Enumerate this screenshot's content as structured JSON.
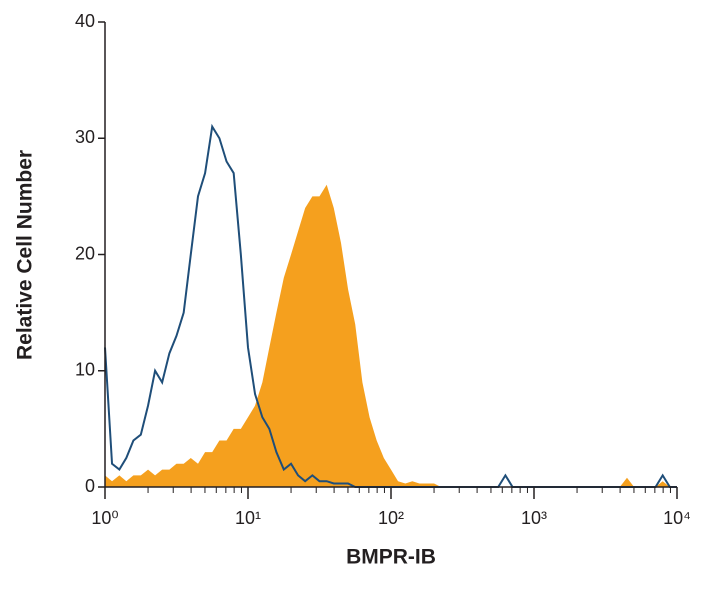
{
  "chart_data": {
    "type": "histogram",
    "xlabel": "BMPR-IB",
    "ylabel": "Relative Cell Number",
    "xscale": "log",
    "xlim": [
      1,
      10000
    ],
    "xticks": [
      {
        "value": 1,
        "label": "10⁰"
      },
      {
        "value": 10,
        "label": "10¹"
      },
      {
        "value": 100,
        "label": "10²"
      },
      {
        "value": 1000,
        "label": "10³"
      },
      {
        "value": 10000,
        "label": "10⁴"
      }
    ],
    "xminorticks": [
      2,
      3,
      4,
      5,
      6,
      7,
      8,
      9,
      20,
      30,
      40,
      50,
      60,
      70,
      80,
      90,
      200,
      300,
      400,
      500,
      600,
      700,
      800,
      900,
      2000,
      3000,
      4000,
      5000,
      6000,
      7000,
      8000,
      9000
    ],
    "ylim": [
      0,
      40
    ],
    "yticks": [
      0,
      10,
      20,
      30,
      40
    ],
    "x": [
      1,
      1.12,
      1.26,
      1.41,
      1.58,
      1.78,
      2,
      2.24,
      2.51,
      2.82,
      3.16,
      3.55,
      3.98,
      4.47,
      5.01,
      5.62,
      6.31,
      7.08,
      7.94,
      8.91,
      10,
      11.2,
      12.6,
      14.1,
      15.8,
      17.8,
      20,
      22.4,
      25.1,
      28.2,
      31.6,
      35.5,
      39.8,
      44.7,
      50.1,
      56.2,
      63.1,
      70.8,
      79.4,
      89.1,
      100,
      112,
      126,
      141,
      158,
      178,
      200,
      224,
      251,
      282,
      316,
      355,
      398,
      447,
      501,
      562,
      631,
      708,
      794,
      891,
      1000,
      1120,
      1260,
      1410,
      1580,
      1780,
      2000,
      2240,
      2510,
      2820,
      3160,
      3550,
      3980,
      4470,
      5010,
      5620,
      6310,
      7080,
      7940,
      8910,
      10000
    ],
    "series": [
      {
        "style": "area",
        "color": "#f5a01e",
        "values": [
          1,
          0.5,
          1,
          0.5,
          1,
          1,
          1.5,
          1,
          1.5,
          1.5,
          2,
          2,
          2.5,
          2,
          3,
          3,
          4,
          4,
          5,
          5,
          6,
          7,
          9,
          12,
          15,
          18,
          20,
          22,
          24,
          25,
          25,
          26,
          24,
          21,
          17,
          14,
          9,
          6,
          4,
          2.5,
          1.5,
          0.5,
          0.3,
          0.5,
          0.3,
          0.3,
          0.3,
          0,
          0,
          0,
          0,
          0,
          0,
          0,
          0,
          0,
          0,
          0,
          0,
          0,
          0,
          0,
          0,
          0,
          0,
          0,
          0,
          0,
          0,
          0,
          0,
          0,
          0,
          0.8,
          0,
          0,
          0,
          0,
          0.5,
          0,
          0
        ]
      },
      {
        "style": "line",
        "color": "#1f4e79",
        "values": [
          12,
          2,
          1.5,
          2.5,
          4,
          4.5,
          7,
          10,
          9,
          11.5,
          13,
          15,
          20,
          25,
          27,
          31,
          30,
          28,
          27,
          20,
          12,
          8,
          6,
          5,
          3,
          1.5,
          2,
          1,
          0.5,
          1,
          0.5,
          0.5,
          0.3,
          0.3,
          0.3,
          0,
          0,
          0,
          0,
          0,
          0,
          0,
          0,
          0,
          0,
          0,
          0,
          0,
          0,
          0,
          0,
          0,
          0,
          0,
          0,
          0,
          1,
          0,
          0,
          0,
          0,
          0,
          0,
          0,
          0,
          0,
          0,
          0,
          0,
          0,
          0,
          0,
          0,
          0,
          0,
          0,
          0,
          0,
          1,
          0,
          0
        ]
      }
    ]
  }
}
